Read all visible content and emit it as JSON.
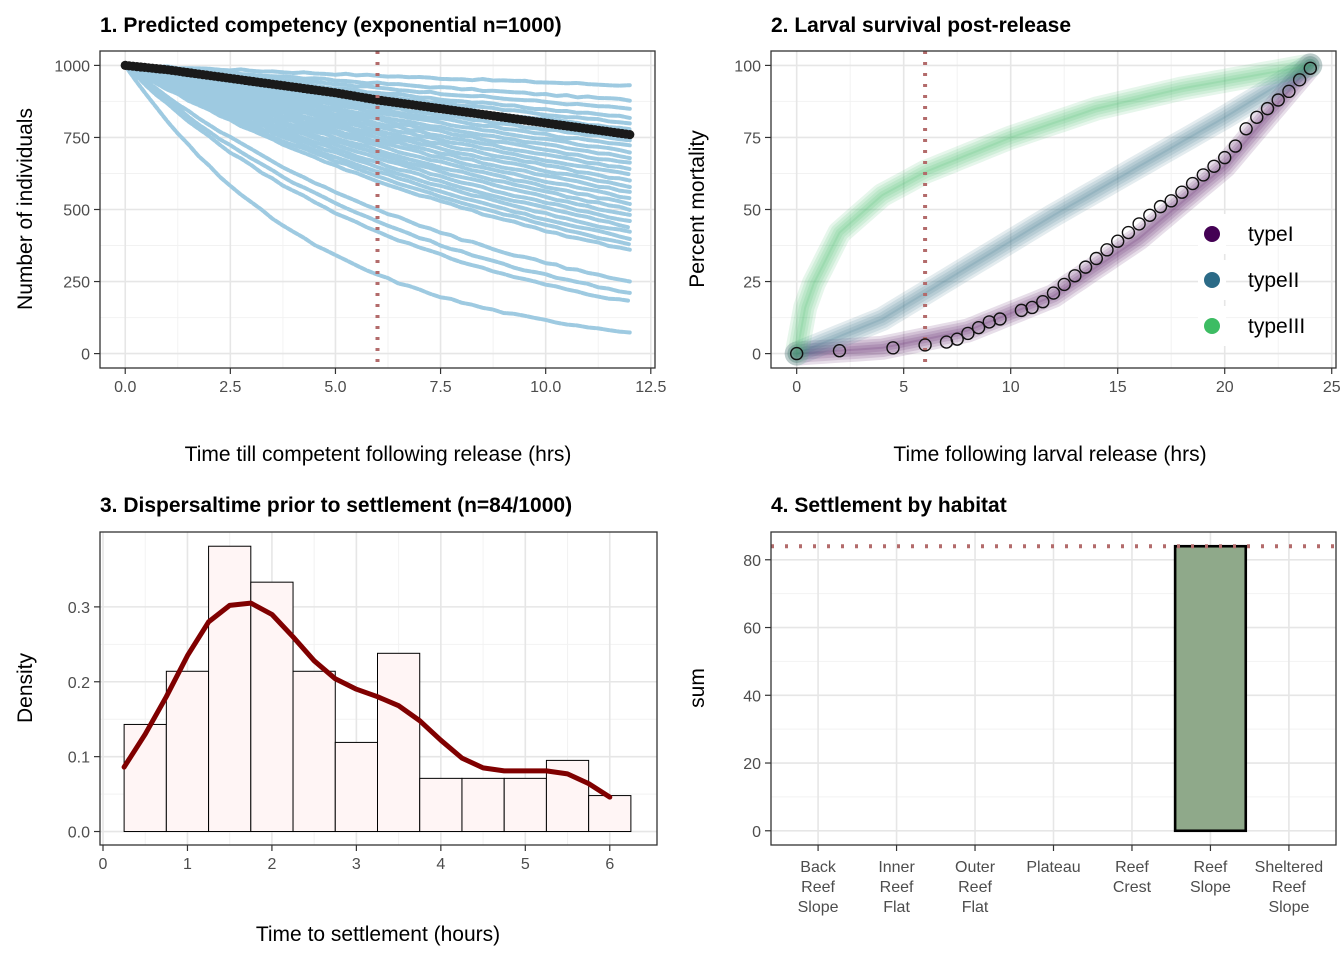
{
  "colors": {
    "competency_line": "#9ecae1",
    "competency_mean": "#1a1a1a",
    "ref_line": "#b36b6b",
    "typeI": "#440154",
    "typeII": "#2c6b87",
    "typeIII": "#3dbc63",
    "hist_fill": "#fff5f5",
    "density_line": "#800000",
    "bar_fill": "#8fa98a"
  },
  "chart_data": [
    {
      "type": "line",
      "title": "1. Predicted competency (exponential n=1000)",
      "xlabel": "Time till competent following release (hrs)",
      "ylabel": "Number of individuals",
      "xlim": [
        -0.6,
        12.6
      ],
      "ylim": [
        -50,
        1050
      ],
      "xticks": [
        "0.0",
        "2.5",
        "5.0",
        "7.5",
        "10.0",
        "12.5"
      ],
      "xtick_values": [
        0,
        2.5,
        5,
        7.5,
        10,
        12.5
      ],
      "yticks": [
        "0",
        "250",
        "500",
        "750",
        "1000"
      ],
      "ytick_values": [
        0,
        250,
        500,
        750,
        1000
      ],
      "vline": 6,
      "grid": true,
      "sim_end_values": [
        930,
        880,
        850,
        820,
        800,
        780,
        760,
        740,
        720,
        700,
        680,
        660,
        640,
        620,
        600,
        580,
        560,
        540,
        520,
        500,
        480,
        460,
        440,
        420,
        400,
        380,
        360,
        250,
        210,
        180,
        75
      ],
      "mean_series": {
        "x": [
          0,
          1,
          2,
          3,
          4,
          5,
          6,
          7,
          8,
          9,
          10,
          11,
          12
        ],
        "y": [
          1000,
          985,
          965,
          945,
          925,
          905,
          880,
          860,
          840,
          820,
          800,
          780,
          760
        ]
      }
    },
    {
      "type": "scatter",
      "title": "2. Larval survival post-release",
      "xlabel": "Time following larval release (hrs)",
      "ylabel": "Percent mortality",
      "xlim": [
        -1.2,
        25.2
      ],
      "ylim": [
        -5,
        105
      ],
      "xticks": [
        "0",
        "5",
        "10",
        "15",
        "20",
        "25"
      ],
      "xtick_values": [
        0,
        5,
        10,
        15,
        20,
        25
      ],
      "yticks": [
        "0",
        "25",
        "50",
        "75",
        "100"
      ],
      "ytick_values": [
        0,
        25,
        50,
        75,
        100
      ],
      "vline": 6,
      "grid": true,
      "legend": {
        "position": "right-inside",
        "entries": [
          "typeI",
          "typeII",
          "typeIII"
        ]
      },
      "series": [
        {
          "name": "typeI",
          "x": [
            0,
            4,
            8,
            12,
            16,
            20,
            24
          ],
          "y": [
            0,
            2,
            8,
            20,
            40,
            65,
            100
          ]
        },
        {
          "name": "typeII",
          "x": [
            0,
            4,
            8,
            12,
            16,
            20,
            24
          ],
          "y": [
            0,
            12,
            30,
            48,
            65,
            82,
            100
          ]
        },
        {
          "name": "typeIII",
          "x": [
            0,
            0.5,
            2,
            4,
            6,
            10,
            14,
            18,
            24
          ],
          "y": [
            0,
            20,
            42,
            55,
            63,
            75,
            85,
            92,
            100
          ]
        }
      ],
      "observed": {
        "x": [
          0,
          2,
          4.5,
          6,
          7,
          7.5,
          8,
          8.5,
          9,
          9.5,
          10.5,
          11,
          11.5,
          12,
          12.5,
          13,
          13.5,
          14,
          14.5,
          15,
          15.5,
          16,
          16.5,
          17,
          17.5,
          18,
          18.5,
          19,
          19.5,
          20,
          20.5,
          21,
          21.5,
          22,
          22.5,
          23,
          23.5,
          24
        ],
        "y": [
          0,
          1,
          2,
          3,
          4,
          5,
          7,
          9,
          11,
          12,
          15,
          16,
          18,
          21,
          24,
          27,
          30,
          33,
          36,
          39,
          42,
          45,
          48,
          51,
          53,
          56,
          59,
          62,
          65,
          68,
          72,
          78,
          82,
          85,
          88,
          91,
          95,
          99
        ]
      }
    },
    {
      "type": "bar",
      "title": "3. Dispersaltime prior to settlement (n=84/1000)",
      "xlabel": "Time to settlement (hours)",
      "ylabel": "Density",
      "xlim": [
        0,
        6.5
      ],
      "ylim": [
        -0.018,
        0.4
      ],
      "xticks": [
        "0",
        "1",
        "2",
        "3",
        "4",
        "5",
        "6"
      ],
      "xtick_values": [
        0,
        1,
        2,
        3,
        4,
        5,
        6
      ],
      "yticks": [
        "0.0",
        "0.1",
        "0.2",
        "0.3"
      ],
      "ytick_values": [
        0,
        0.1,
        0.2,
        0.3
      ],
      "grid": true,
      "bin_edges": [
        0.25,
        0.75,
        1.25,
        1.75,
        2.25,
        2.75,
        3.25,
        3.75,
        4.25,
        4.75,
        5.25,
        5.75,
        6.25
      ],
      "values": [
        0.143,
        0.214,
        0.381,
        0.333,
        0.214,
        0.119,
        0.238,
        0.071,
        0.071,
        0.071,
        0.095,
        0.048
      ],
      "density": {
        "x": [
          0.25,
          0.5,
          0.75,
          1.0,
          1.25,
          1.5,
          1.75,
          2.0,
          2.25,
          2.5,
          2.75,
          3.0,
          3.25,
          3.5,
          3.75,
          4.0,
          4.25,
          4.5,
          4.75,
          5.0,
          5.25,
          5.5,
          5.75,
          6.0
        ],
        "y": [
          0.086,
          0.13,
          0.18,
          0.235,
          0.28,
          0.302,
          0.305,
          0.29,
          0.26,
          0.228,
          0.204,
          0.19,
          0.18,
          0.168,
          0.148,
          0.122,
          0.098,
          0.085,
          0.081,
          0.081,
          0.081,
          0.077,
          0.064,
          0.046
        ]
      }
    },
    {
      "type": "bar",
      "title": "4. Settlement by habitat",
      "xlabel": "",
      "ylabel": "sum",
      "ylim": [
        -4.2,
        88.2
      ],
      "yticks": [
        "0",
        "20",
        "40",
        "60",
        "80"
      ],
      "ytick_values": [
        0,
        20,
        40,
        60,
        80
      ],
      "hline": 84,
      "grid": true,
      "categories": [
        [
          "Back",
          "Reef",
          "Slope"
        ],
        [
          "Inner",
          "Reef",
          "Flat"
        ],
        [
          "Outer",
          "Reef",
          "Flat"
        ],
        [
          "Plateau"
        ],
        [
          "Reef",
          "Crest"
        ],
        [
          "Reef",
          "Slope"
        ],
        [
          "Sheltered",
          "Reef",
          "Slope"
        ]
      ],
      "values": [
        0,
        0,
        0,
        0,
        0,
        84,
        0
      ]
    }
  ]
}
